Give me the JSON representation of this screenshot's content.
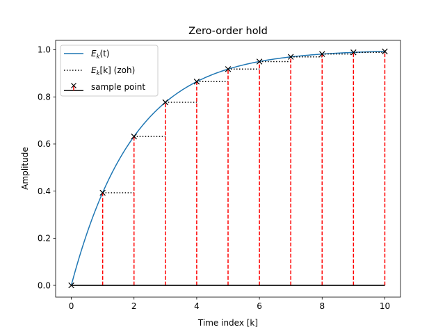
{
  "chart_data": {
    "type": "line",
    "title": "Zero-order hold",
    "xlabel": "Time index [k]",
    "ylabel": "Amplitude",
    "xlim": [
      -0.5,
      10.5
    ],
    "ylim": [
      -0.05,
      1.04
    ],
    "xticks": [
      0,
      2,
      4,
      6,
      8,
      10
    ],
    "yticks": [
      0.0,
      0.2,
      0.4,
      0.6,
      0.8,
      1.0
    ],
    "xtick_labels": [
      "0",
      "2",
      "4",
      "6",
      "8",
      "10"
    ],
    "ytick_labels": [
      "0.0",
      "0.2",
      "0.4",
      "0.6",
      "0.8",
      "1.0"
    ],
    "grid": false,
    "legend_position": "top-left",
    "series": [
      {
        "name": "E_k(t)",
        "style": "solid",
        "color": "#1f77b4",
        "function": "1 - exp(-t/2)",
        "x_range": [
          0,
          10
        ]
      },
      {
        "name": "E_k[k] (zoh)",
        "style": "dotted",
        "color": "#000000",
        "x": [
          1,
          2,
          3,
          4,
          5,
          6,
          7,
          8,
          9
        ],
        "values": [
          0.393,
          0.632,
          0.777,
          0.865,
          0.918,
          0.95,
          0.97,
          0.982,
          0.989
        ]
      },
      {
        "name": "sample point",
        "style": "stem",
        "marker": "x",
        "color": "#000000",
        "stem_color": "#ff0000",
        "x": [
          0,
          1,
          2,
          3,
          4,
          5,
          6,
          7,
          8,
          9,
          10
        ],
        "values": [
          0.0,
          0.393,
          0.632,
          0.777,
          0.865,
          0.918,
          0.95,
          0.97,
          0.982,
          0.989,
          0.993
        ]
      }
    ],
    "legend": [
      {
        "main": "E",
        "sub": "k",
        "rest": "(t)",
        "suffix": ""
      },
      {
        "main": "E",
        "sub": "k",
        "rest": "[k]",
        "suffix": " (zoh)"
      },
      {
        "main": "",
        "sub": "",
        "rest": "",
        "suffix": "sample point"
      }
    ]
  }
}
